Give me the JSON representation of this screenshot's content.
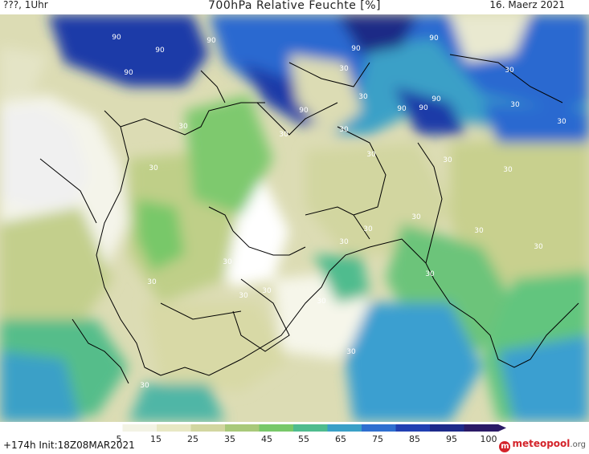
{
  "header": {
    "left": "???, 1Uhr",
    "title": "700hPa Relative Feuchte [%]",
    "date": "16. Maerz 2021"
  },
  "footer": {
    "run": "+174h  Init:18Z08MAR2021",
    "logo_brand": "meteopool",
    "logo_tld": ".org"
  },
  "colorbar": {
    "ticks": [
      "5",
      "15",
      "25",
      "35",
      "45",
      "55",
      "65",
      "75",
      "85",
      "95",
      "100"
    ],
    "colors": [
      "#ffffff",
      "#f3f3e4",
      "#e8e8c4",
      "#d2d6a0",
      "#a9c97a",
      "#78c869",
      "#4fbc8e",
      "#3aa0c7",
      "#2f6fd0",
      "#2140b2",
      "#1d2a8a",
      "#2b1a66"
    ]
  },
  "map_labels": [
    "90",
    "90",
    "90",
    "90",
    "90",
    "90",
    "90",
    "90",
    "90",
    "90",
    "30",
    "30",
    "30",
    "30",
    "30",
    "30",
    "30",
    "30",
    "30",
    "30",
    "30",
    "30",
    "30",
    "30",
    "30",
    "30",
    "30",
    "30",
    "30",
    "30",
    "30",
    "30",
    "30",
    "30",
    "30"
  ],
  "palette": {
    "dry": "#ffffff",
    "pale": "#eeeedd",
    "beige": "#dcdcb4",
    "olive": "#c7cd8f",
    "green": "#9fcc77",
    "teal": "#55c08c",
    "cyan": "#3b9fd0",
    "blue": "#2c69d0",
    "navy": "#1f3aa8",
    "deep": "#1b2a86",
    "border": "#000000"
  }
}
